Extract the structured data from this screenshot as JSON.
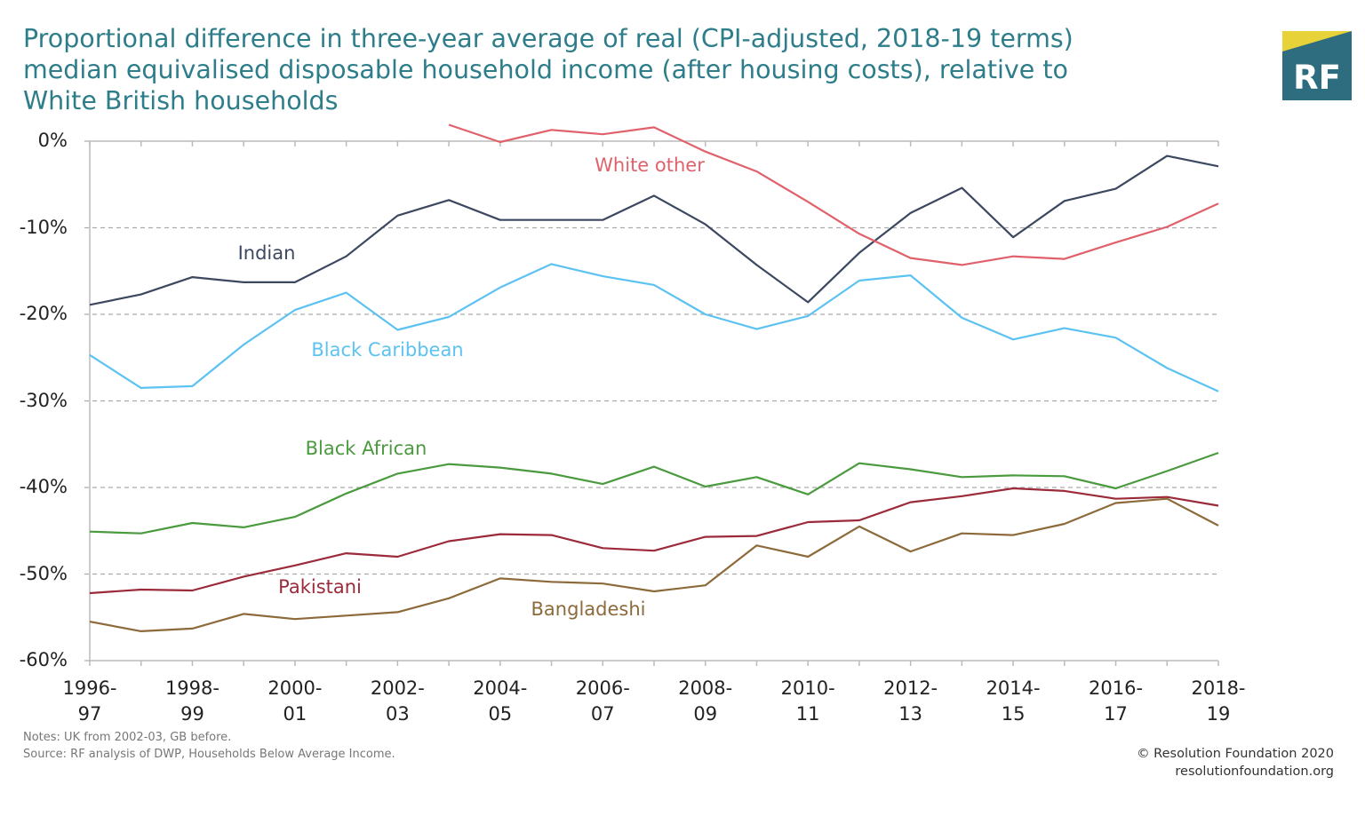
{
  "chart_data": {
    "type": "line",
    "title": "Proportional difference in three-year average of real (CPI-adjusted, 2018-19 terms) median equivalised disposable household income (after housing costs), relative to White British households",
    "categories": [
      "1996-\n97",
      null,
      "1998-\n99",
      null,
      "2000-\n01",
      null,
      "2002-\n03",
      null,
      "2004-\n05",
      null,
      "2006-\n07",
      null,
      "2008-\n09",
      null,
      "2010-\n11",
      null,
      "2012-\n13",
      null,
      "2014-\n15",
      null,
      "2016-\n17",
      null,
      "2018-\n19"
    ],
    "series": [
      {
        "name": "Indian",
        "color": "#3c4760",
        "values": [
          -18.9,
          -17.7,
          -15.7,
          -16.3,
          -16.3,
          -13.3,
          -8.6,
          -6.8,
          -9.1,
          -9.1,
          -9.1,
          -6.3,
          -9.6,
          -14.3,
          -18.6,
          -12.9,
          -8.3,
          -5.4,
          -11.1,
          -6.9,
          -5.5,
          -1.7,
          -2.9
        ]
      },
      {
        "name": "White other",
        "color": "#e0616b",
        "values": [
          null,
          null,
          null,
          null,
          null,
          null,
          null,
          1.9,
          -0.1,
          1.3,
          0.8,
          1.6,
          -1.2,
          -3.5,
          -7.0,
          -10.7,
          -13.5,
          -14.3,
          -13.3,
          -13.6,
          -11.7,
          -9.9,
          -7.2
        ]
      },
      {
        "name": "Black Caribbean",
        "color": "#5cc2f2",
        "values": [
          -24.7,
          -28.5,
          -28.3,
          -23.5,
          -19.5,
          -17.5,
          -21.8,
          -20.3,
          -16.9,
          -14.2,
          -15.6,
          -16.6,
          -20.0,
          -21.7,
          -20.2,
          -16.1,
          -15.5,
          -20.4,
          -22.9,
          -21.6,
          -22.7,
          -26.2,
          -28.9
        ]
      },
      {
        "name": "Black African",
        "color": "#4a9a3e",
        "values": [
          -45.1,
          -45.3,
          -44.1,
          -44.6,
          -43.4,
          -40.7,
          -38.4,
          -37.3,
          -37.7,
          -38.4,
          -39.6,
          -37.6,
          -39.9,
          -38.8,
          -40.8,
          -37.2,
          -37.9,
          -38.8,
          -38.6,
          -38.7,
          -40.1,
          -38.1,
          -36.0
        ]
      },
      {
        "name": "Pakistani",
        "color": "#9b2a3a",
        "values": [
          -52.2,
          -51.8,
          -51.9,
          -50.3,
          -49.0,
          -47.6,
          -48.0,
          -46.2,
          -45.4,
          -45.5,
          -47.0,
          -47.3,
          -45.7,
          -45.6,
          -44.0,
          -43.8,
          -41.7,
          -41.0,
          -40.1,
          -40.4,
          -41.3,
          -41.1,
          -42.1
        ]
      },
      {
        "name": "Bangladeshi",
        "color": "#8c6a3a",
        "values": [
          -55.5,
          -56.6,
          -56.3,
          -54.6,
          -55.2,
          -54.8,
          -54.4,
          -52.8,
          -50.5,
          -50.9,
          -51.1,
          -52.0,
          -51.3,
          -46.7,
          -48.0,
          -44.5,
          -47.4,
          -45.3,
          -45.5,
          -44.2,
          -41.8,
          -41.3,
          -44.4
        ]
      }
    ],
    "ylim": [
      -60,
      0
    ],
    "yticks": [
      {
        "value": 0,
        "label": "0%"
      },
      {
        "value": -10,
        "label": "-10%"
      },
      {
        "value": -20,
        "label": "-20%"
      },
      {
        "value": -30,
        "label": "-30%"
      },
      {
        "value": -40,
        "label": "-40%"
      },
      {
        "value": -50,
        "label": "-50%"
      },
      {
        "value": -60,
        "label": "-60%"
      }
    ],
    "grid": true,
    "notes": "Notes: UK from 2002-03, GB before.",
    "source": "Source: RF analysis of DWP, Households Below Average Income.",
    "copyright": "© Resolution Foundation 2020",
    "website": "resolutionfoundation.org",
    "logo": "RF"
  }
}
